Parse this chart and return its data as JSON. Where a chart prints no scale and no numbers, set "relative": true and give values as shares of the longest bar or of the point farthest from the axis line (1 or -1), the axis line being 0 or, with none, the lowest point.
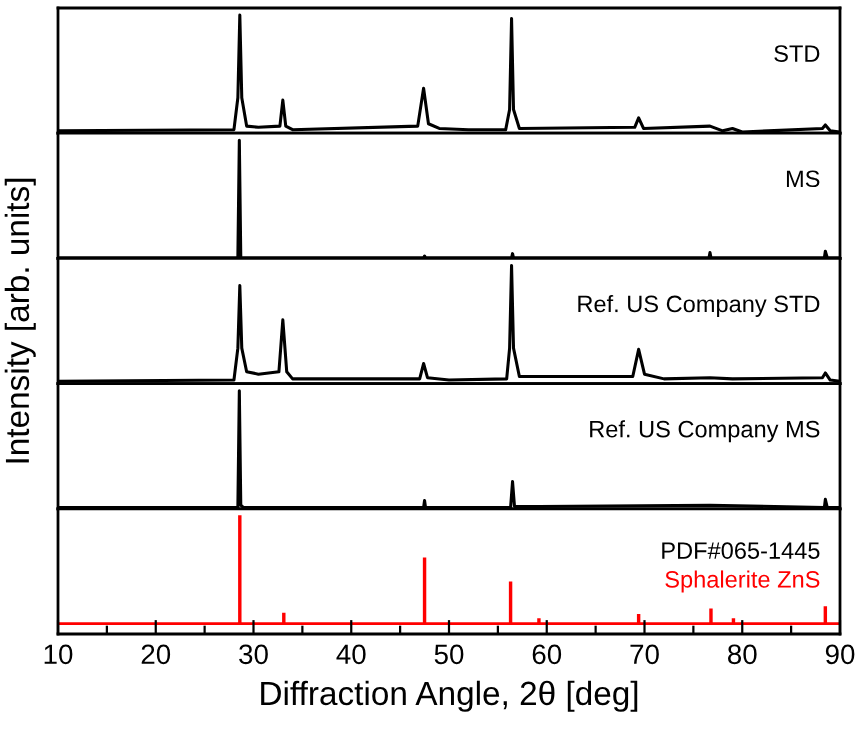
{
  "chart_data": [
    {
      "type": "line",
      "relative": true,
      "xlim": [
        10,
        90
      ],
      "tick_labels": false,
      "series": [
        {
          "name": "STD",
          "color": "#000000",
          "x": [
            10,
            28.0,
            28.4,
            28.6,
            28.8,
            29.3,
            30.5,
            32.7,
            33.0,
            33.3,
            34,
            46.8,
            47.4,
            47.9,
            49,
            52,
            55.8,
            56.2,
            56.4,
            56.6,
            57.2,
            69,
            69.4,
            69.9,
            76.7,
            78,
            79,
            80,
            88.2,
            88.5,
            89,
            90
          ],
          "values": [
            0.02,
            0.03,
            0.3,
            1,
            0.3,
            0.06,
            0.05,
            0.06,
            0.28,
            0.06,
            0.03,
            0.06,
            0.38,
            0.08,
            0.04,
            0.03,
            0.03,
            0.2,
            0.97,
            0.2,
            0.04,
            0.05,
            0.13,
            0.04,
            0.06,
            0.02,
            0.04,
            0.01,
            0.04,
            0.07,
            0.02,
            0.01
          ]
        }
      ]
    },
    {
      "type": "line",
      "relative": true,
      "xlim": [
        10,
        90
      ],
      "tick_labels": false,
      "series": [
        {
          "name": "MS",
          "color": "#000000",
          "x": [
            10,
            28.4,
            28.55,
            28.7,
            47.4,
            47.5,
            47.6,
            56.4,
            56.5,
            56.6,
            76.6,
            76.7,
            76.8,
            88.4,
            88.5,
            88.7,
            90
          ],
          "values": [
            0.005,
            0.005,
            1,
            0.005,
            0.005,
            0.02,
            0.005,
            0.005,
            0.04,
            0.005,
            0.005,
            0.05,
            0.005,
            0.005,
            0.06,
            0.005,
            0.005
          ]
        }
      ]
    },
    {
      "type": "line",
      "relative": true,
      "xlim": [
        10,
        90
      ],
      "tick_labels": false,
      "ylabel": "Intensity [arb. units]",
      "series": [
        {
          "name": "Ref. US Company STD",
          "color": "#000000",
          "x": [
            10,
            28.0,
            28.4,
            28.6,
            28.8,
            29.3,
            30.5,
            32.6,
            33.0,
            33.4,
            34,
            47.0,
            47.4,
            47.8,
            50,
            55.9,
            56.2,
            56.4,
            56.6,
            57.2,
            68.8,
            69.4,
            70.0,
            72,
            76.7,
            79,
            88.2,
            88.5,
            89,
            90
          ],
          "values": [
            0.02,
            0.03,
            0.3,
            0.83,
            0.3,
            0.1,
            0.08,
            0.1,
            0.54,
            0.1,
            0.04,
            0.04,
            0.17,
            0.05,
            0.03,
            0.04,
            0.3,
            1,
            0.3,
            0.06,
            0.06,
            0.29,
            0.08,
            0.04,
            0.05,
            0.04,
            0.05,
            0.09,
            0.03,
            0.02
          ]
        }
      ]
    },
    {
      "type": "line",
      "relative": true,
      "xlim": [
        10,
        90
      ],
      "tick_labels": false,
      "series": [
        {
          "name": "Ref. US Company MS",
          "color": "#000000",
          "x": [
            10,
            28.4,
            28.55,
            28.7,
            29,
            47.4,
            47.5,
            47.6,
            56.3,
            56.5,
            56.7,
            59.2,
            76.7,
            88.4,
            88.5,
            88.7,
            90
          ],
          "values": [
            0.01,
            0.01,
            1,
            0.03,
            0.01,
            0.01,
            0.07,
            0.01,
            0.01,
            0.23,
            0.02,
            0.02,
            0.03,
            0.01,
            0.08,
            0.01,
            0.01
          ]
        }
      ]
    },
    {
      "type": "bar",
      "relative": true,
      "xlim": [
        10,
        90
      ],
      "tick_labels": "x",
      "xlabel": "Diffraction Angle, 2θ [deg]",
      "xticks": [
        10,
        {
          "value": 15,
          "label": null
        },
        20,
        {
          "value": 25,
          "label": null
        },
        30,
        {
          "value": 35,
          "label": null
        },
        40,
        {
          "value": 45,
          "label": null
        },
        50,
        {
          "value": 55,
          "label": null
        },
        60,
        {
          "value": 65,
          "label": null
        },
        70,
        {
          "value": 75,
          "label": null
        },
        80,
        {
          "value": 85,
          "label": null
        },
        90
      ],
      "annotations": [
        "PDF#065-1445"
      ],
      "ref_lines": [
        {
          "axis": "y",
          "value": 0,
          "color": "#ff0000"
        }
      ],
      "series": [
        {
          "name": "Sphalerite ZnS",
          "color": "#ff0000",
          "x": [
            28.6,
            33.1,
            47.5,
            56.3,
            59.2,
            69.4,
            76.8,
            79.1,
            88.5
          ],
          "values": [
            1,
            0.1,
            0.61,
            0.39,
            0.05,
            0.09,
            0.14,
            0.05,
            0.16
          ]
        }
      ]
    }
  ]
}
